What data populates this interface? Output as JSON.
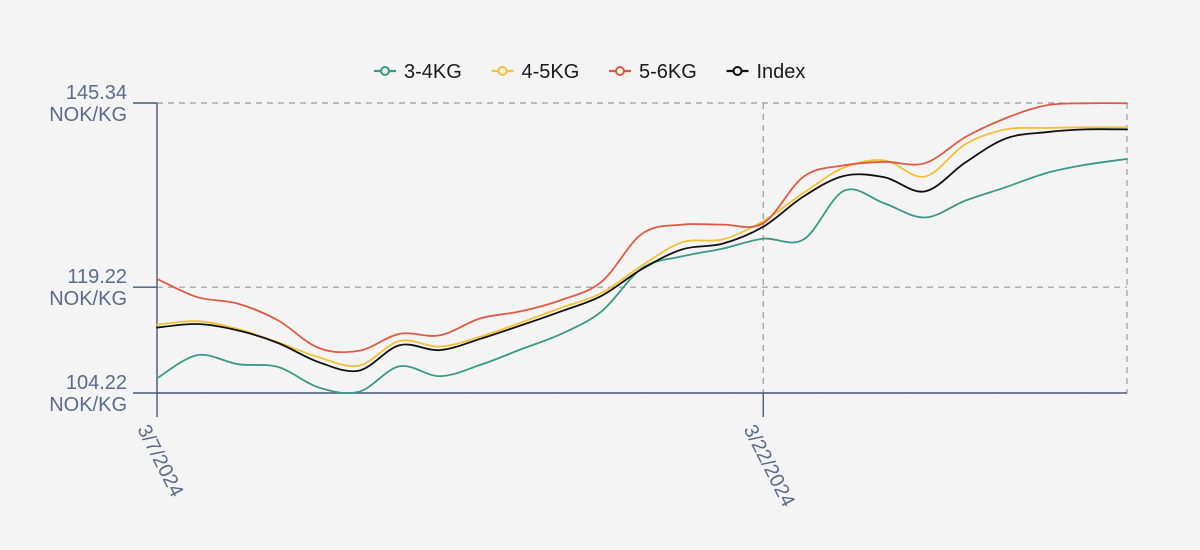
{
  "chart_data": {
    "type": "line",
    "title": "",
    "xlabel": "",
    "ylabel": "",
    "ylim": [
      104.22,
      145.34
    ],
    "y_ticks": [
      {
        "value": 145.34,
        "line1": "145.34",
        "line2": "NOK/KG"
      },
      {
        "value": 119.22,
        "line1": "119.22",
        "line2": "NOK/KG"
      },
      {
        "value": 104.22,
        "line1": "104.22",
        "line2": "NOK/KG"
      }
    ],
    "x_ticks": [
      {
        "index": 0,
        "label": "3/7/2024"
      },
      {
        "index": 15,
        "label": "3/22/2024"
      }
    ],
    "x_count": 25,
    "legend_position": "top-center",
    "grid": true,
    "series": [
      {
        "name": "3-4KG",
        "color": "#3a9a87",
        "values": [
          106.3,
          109.6,
          108.3,
          107.9,
          105.0,
          104.4,
          108.0,
          106.6,
          108.2,
          110.4,
          112.6,
          115.8,
          121.9,
          123.6,
          124.7,
          126.1,
          126.0,
          132.9,
          131.1,
          129.1,
          131.5,
          133.4,
          135.4,
          136.6,
          137.4
        ]
      },
      {
        "name": "4-5KG",
        "color": "#f3c037",
        "values": [
          113.9,
          114.4,
          113.3,
          111.4,
          109.3,
          108.1,
          111.6,
          110.8,
          112.2,
          114.2,
          116.3,
          118.4,
          122.3,
          125.6,
          126.0,
          128.6,
          132.6,
          136.2,
          137.2,
          134.9,
          139.5,
          141.6,
          141.8,
          141.9,
          141.9
        ]
      },
      {
        "name": "5-6KG",
        "color": "#e05a43",
        "values": [
          120.4,
          117.8,
          116.9,
          114.5,
          110.6,
          110.2,
          112.6,
          112.4,
          114.8,
          115.8,
          117.4,
          120.0,
          126.8,
          128.1,
          128.1,
          128.3,
          134.9,
          136.5,
          137.0,
          136.8,
          140.5,
          143.2,
          145.0,
          145.3,
          145.3
        ]
      },
      {
        "name": "Index",
        "color": "#111111",
        "values": [
          113.5,
          114.0,
          113.1,
          111.3,
          108.6,
          107.4,
          111.0,
          110.3,
          111.9,
          113.8,
          115.8,
          118.0,
          121.8,
          124.6,
          125.4,
          127.8,
          132.1,
          135.0,
          134.8,
          132.8,
          136.9,
          140.3,
          141.2,
          141.6,
          141.6
        ]
      }
    ]
  }
}
